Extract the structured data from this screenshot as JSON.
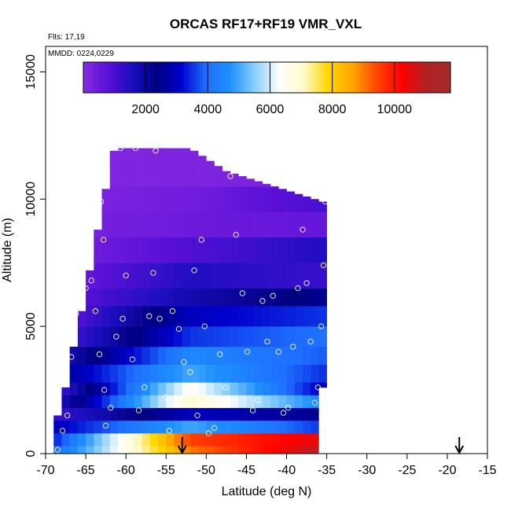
{
  "chart_data": {
    "type": "heatmap",
    "title": "ORCAS RF17+RF19 VMR_VXL",
    "flights_note": "Flts: 17,19",
    "date_note": "MMDD: 0224,0229",
    "xlabel": "Latitude (deg N)",
    "ylabel": "Altitude (m)",
    "xlim": [
      -70,
      -15
    ],
    "ylim": [
      0,
      16000
    ],
    "x_ticks": [
      -70,
      -65,
      -60,
      -55,
      -50,
      -45,
      -40,
      -35,
      -30,
      -25,
      -20,
      -15
    ],
    "y_ticks": [
      0,
      5000,
      10000,
      15000
    ],
    "grid": false,
    "colorbar": {
      "placement": "top-inside",
      "range": [
        0,
        11800
      ],
      "ticks": [
        2000,
        4000,
        6000,
        8000,
        10000
      ],
      "colors": [
        "#8a2be2",
        "#5a10d8",
        "#1a0ec0",
        "#000080",
        "#0000cd",
        "#1e6fff",
        "#1e90ff",
        "#87cefa",
        "#ffffff",
        "#fffacd",
        "#ffd700",
        "#ffa500",
        "#ff4500",
        "#ff0000",
        "#b22222",
        "#a52a2a"
      ]
    },
    "arrows_lat": [
      -53,
      -18.5
    ],
    "lat_columns": [
      -68.5,
      -67.5,
      -66.5,
      -65.5,
      -64.5,
      -63.5,
      -62.5,
      -61.5,
      -60.5,
      -59.5,
      -58.5,
      -57.5,
      -56.5,
      -55.5,
      -54.5,
      -53.5,
      -52.5,
      -51.5,
      -50.5,
      -49.5,
      -48.5,
      -47.5,
      -46.5,
      -45.5,
      -44.5,
      -43.5,
      -42.5,
      -41.5,
      -40.5,
      -39.5,
      -38.5,
      -37.5,
      -36.5,
      -35.5
    ],
    "column_top_alt": [
      1500,
      2600,
      4200,
      5600,
      7200,
      8800,
      10400,
      11900,
      12000,
      12000,
      12000,
      12000,
      12000,
      12000,
      12000,
      12000,
      12000,
      11900,
      11700,
      11500,
      11300,
      11100,
      11000,
      10900,
      10800,
      10700,
      10600,
      10500,
      10400,
      10300,
      10200,
      10100,
      10000,
      9900
    ],
    "column_bottom_alt": [
      0,
      0,
      0,
      0,
      0,
      0,
      0,
      0,
      0,
      0,
      0,
      0,
      0,
      0,
      0,
      0,
      0,
      0,
      0,
      0,
      0,
      0,
      0,
      0,
      0,
      0,
      0,
      0,
      0,
      0,
      0,
      0,
      0,
      2600
    ],
    "layers": [
      {
        "alt_min": 0,
        "alt_max": 300,
        "value_south": 4000,
        "value_mid": 9000,
        "value_north": 11000
      },
      {
        "alt_min": 300,
        "alt_max": 800,
        "value_south": 3500,
        "value_mid": 9500,
        "value_north": 10500
      },
      {
        "alt_min": 800,
        "alt_max": 1300,
        "value_south": 3000,
        "value_mid": 5000,
        "value_north": 3500
      },
      {
        "alt_min": 1300,
        "alt_max": 1800,
        "value_south": 1200,
        "value_mid": 3000,
        "value_north": 2500
      },
      {
        "alt_min": 1800,
        "alt_max": 2300,
        "value_south": 1500,
        "value_mid": 7000,
        "value_north": 4500
      },
      {
        "alt_min": 2300,
        "alt_max": 2800,
        "value_south": 1000,
        "value_mid": 6500,
        "value_north": 3000
      },
      {
        "alt_min": 2800,
        "alt_max": 3500,
        "value_south": 2500,
        "value_mid": 5000,
        "value_north": 3500
      },
      {
        "alt_min": 3500,
        "alt_max": 4200,
        "value_south": 1500,
        "value_mid": 4500,
        "value_north": 3800
      },
      {
        "alt_min": 4200,
        "alt_max": 5000,
        "value_south": 800,
        "value_mid": 3500,
        "value_north": 4000
      },
      {
        "alt_min": 5000,
        "alt_max": 5800,
        "value_south": 500,
        "value_mid": 3000,
        "value_north": 3500
      },
      {
        "alt_min": 5800,
        "alt_max": 6500,
        "value_south": 600,
        "value_mid": 1800,
        "value_north": 2500
      },
      {
        "alt_min": 6500,
        "alt_max": 7500,
        "value_south": 400,
        "value_mid": 1500,
        "value_north": 1200
      },
      {
        "alt_min": 7500,
        "alt_max": 8500,
        "value_south": 300,
        "value_mid": 900,
        "value_north": 1500
      },
      {
        "alt_min": 8500,
        "alt_max": 9500,
        "value_south": 250,
        "value_mid": 500,
        "value_north": 600
      },
      {
        "alt_min": 9500,
        "alt_max": 10500,
        "value_south": 200,
        "value_mid": 400,
        "value_north": 1000
      },
      {
        "alt_min": 10500,
        "alt_max": 12000,
        "value_south": 150,
        "value_mid": 200,
        "value_north": 300
      }
    ],
    "sample_points": [
      [
        -68.5,
        150
      ],
      [
        -67.9,
        900
      ],
      [
        -67.3,
        1500
      ],
      [
        -66.8,
        3800
      ],
      [
        -66.2,
        5500
      ],
      [
        -65.7,
        7600
      ],
      [
        -65.0,
        6500
      ],
      [
        -64.3,
        6800
      ],
      [
        -63.8,
        5600
      ],
      [
        -63.3,
        3900
      ],
      [
        -62.7,
        2500
      ],
      [
        -62.5,
        1100
      ],
      [
        -61.9,
        1800
      ],
      [
        -61.2,
        4600
      ],
      [
        -60.4,
        5300
      ],
      [
        -60.0,
        7000
      ],
      [
        -59.2,
        3700
      ],
      [
        -58.4,
        1700
      ],
      [
        -57.7,
        2600
      ],
      [
        -57.1,
        5400
      ],
      [
        -56.6,
        7100
      ],
      [
        -55.8,
        5300
      ],
      [
        -55.1,
        2200
      ],
      [
        -54.6,
        900
      ],
      [
        -54.2,
        5600
      ],
      [
        -53.4,
        4900
      ],
      [
        -52.8,
        3600
      ],
      [
        -52.0,
        3200
      ],
      [
        -51.5,
        7200
      ],
      [
        -51.1,
        1500
      ],
      [
        -50.6,
        8400
      ],
      [
        -50.2,
        5000
      ],
      [
        -49.7,
        800
      ],
      [
        -49.0,
        1000
      ],
      [
        -48.3,
        3900
      ],
      [
        -47.6,
        2600
      ],
      [
        -47.0,
        10900
      ],
      [
        -46.3,
        8600
      ],
      [
        -45.5,
        6300
      ],
      [
        -44.9,
        4000
      ],
      [
        -44.2,
        1700
      ],
      [
        -43.6,
        2100
      ],
      [
        -43.0,
        6000
      ],
      [
        -42.4,
        4400
      ],
      [
        -41.7,
        6200
      ],
      [
        -41.0,
        4000
      ],
      [
        -40.4,
        1600
      ],
      [
        -39.8,
        1800
      ],
      [
        -39.2,
        4200
      ],
      [
        -38.6,
        6500
      ],
      [
        -38.0,
        8800
      ],
      [
        -37.5,
        6700
      ],
      [
        -37.0,
        4400
      ],
      [
        -36.5,
        2000
      ],
      [
        -36.1,
        2600
      ],
      [
        -35.7,
        5000
      ],
      [
        -35.4,
        7400
      ],
      [
        -35.2,
        9900
      ],
      [
        -63.1,
        9900
      ],
      [
        -56.3,
        11900
      ],
      [
        -64.8,
        8000
      ],
      [
        -62.8,
        8400
      ],
      [
        -66.9,
        11900
      ],
      [
        -60.7,
        12000
      ],
      [
        -58.8,
        12000
      ]
    ]
  }
}
